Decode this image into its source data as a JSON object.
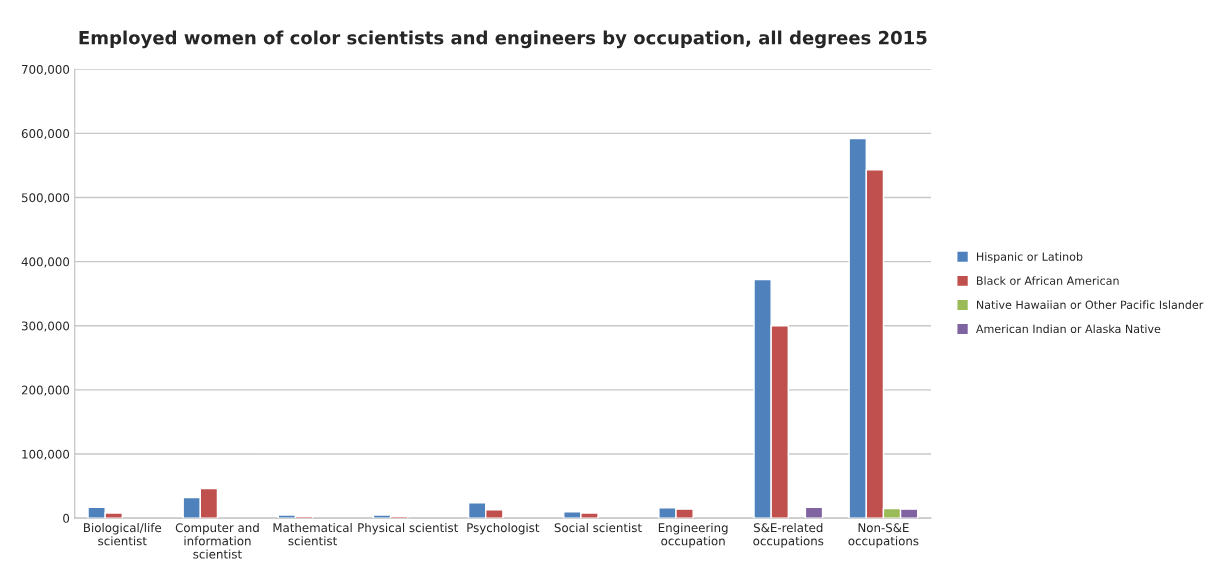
{
  "chart_data": {
    "type": "bar",
    "title": "Employed women of color scientists and engineers by occupation, all degrees 2015",
    "categories": [
      "Biological/life\nscientist",
      "Computer and\ninformation\nscientist",
      "Mathematical\nscientist",
      "Physical scientist",
      "Psychologist",
      "Social scientist",
      "Engineering\noccupation",
      "S&E-related\noccupations",
      "Non-S&E\noccupations"
    ],
    "series": [
      {
        "name": "Hispanic or Latinob",
        "color": "#4f81bd",
        "values": [
          17000,
          32000,
          5000,
          5000,
          24000,
          10000,
          16000,
          372000,
          592000
        ]
      },
      {
        "name": "Black or African American",
        "color": "#c0504d",
        "values": [
          8000,
          46000,
          3000,
          3000,
          13000,
          8000,
          14000,
          300000,
          543000
        ]
      },
      {
        "name": "Native Hawaiian or Other Pacific Islander",
        "color": "#9bbb59",
        "values": [
          null,
          null,
          null,
          null,
          null,
          null,
          null,
          null,
          15000
        ]
      },
      {
        "name": "American Indian or Alaska Native",
        "color": "#8064a2",
        "values": [
          null,
          null,
          null,
          null,
          null,
          null,
          null,
          17000,
          14000
        ]
      }
    ],
    "ylim": [
      0,
      700000
    ],
    "yticks": [
      {
        "value": 0,
        "label": "0"
      },
      {
        "value": 100000,
        "label": "100,000"
      },
      {
        "value": 200000,
        "label": "200,000"
      },
      {
        "value": 300000,
        "label": "300,000"
      },
      {
        "value": 400000,
        "label": "400,000"
      },
      {
        "value": 500000,
        "label": "500,000"
      },
      {
        "value": 600000,
        "label": "600,000"
      },
      {
        "value": 700000,
        "label": "700,000"
      }
    ],
    "grid": "y",
    "legend": "right"
  }
}
